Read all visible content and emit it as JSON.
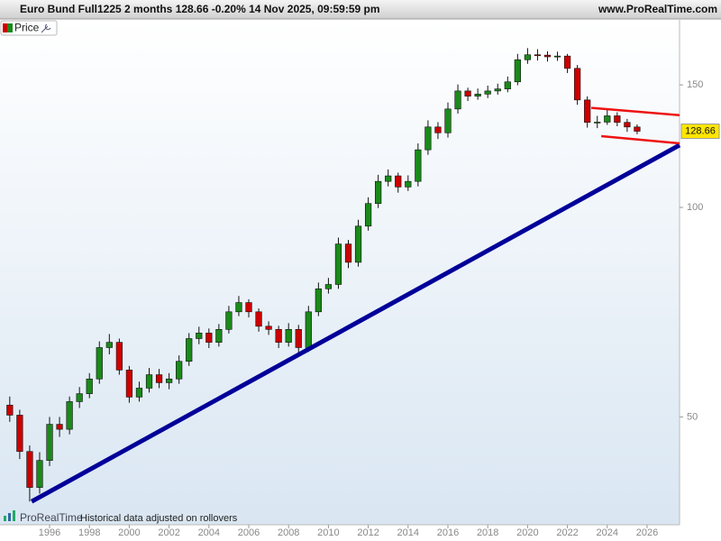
{
  "chart_data": {
    "type": "candlestick",
    "title": "Euro Bund Full1225 2 months 128.66 -0.20% 14 Nov 2025, 09:59:59 pm",
    "website": "www.ProRealTime.com",
    "legend": "Price",
    "brand": "ProRealTime",
    "footnote": "Historical data adjusted on rollovers",
    "log_scale": true,
    "grid": false,
    "up_color": "#1a8a1a",
    "down_color": "#cc0000",
    "x": [
      1994.0,
      1994.5,
      1995.0,
      1995.5,
      1996.0,
      1996.5,
      1997.0,
      1997.5,
      1998.0,
      1998.5,
      1999.0,
      1999.5,
      2000.0,
      2000.5,
      2001.0,
      2001.5,
      2002.0,
      2002.5,
      2003.0,
      2003.5,
      2004.0,
      2004.5,
      2005.0,
      2005.5,
      2006.0,
      2006.5,
      2007.0,
      2007.5,
      2008.0,
      2008.5,
      2009.0,
      2009.5,
      2010.0,
      2010.5,
      2011.0,
      2011.5,
      2012.0,
      2012.5,
      2013.0,
      2013.5,
      2014.0,
      2014.5,
      2015.0,
      2015.5,
      2016.0,
      2016.5,
      2017.0,
      2017.5,
      2018.0,
      2018.5,
      2019.0,
      2019.5,
      2020.0,
      2020.5,
      2021.0,
      2021.5,
      2022.0,
      2022.5,
      2023.0,
      2023.5,
      2024.0,
      2024.5,
      2025.0,
      2025.5
    ],
    "open": [
      52,
      50.3,
      44.6,
      39.6,
      43.3,
      48.8,
      48,
      52.6,
      54,
      56.7,
      62.9,
      64,
      58.4,
      53.4,
      55,
      57.5,
      56,
      56.7,
      60.1,
      64.8,
      66,
      64,
      66.8,
      70.8,
      73,
      70.8,
      67.5,
      66.8,
      64,
      66.8,
      62.9,
      70.8,
      76.4,
      77.5,
      88.6,
      83.4,
      94,
      101.3,
      109,
      111,
      107,
      109,
      121,
      130.5,
      128,
      138.5,
      147,
      144.5,
      145.5,
      147,
      148,
      151.5,
      163,
      165.7,
      165.5,
      164.6,
      165,
      158.4,
      142.7,
      132.5,
      132.6,
      135.4,
      132.5,
      130.5
    ],
    "high": [
      53.5,
      51.2,
      45.5,
      44.5,
      50,
      50,
      53.5,
      55.2,
      57.8,
      64.2,
      65.8,
      64.8,
      59.2,
      56.2,
      58.8,
      58.6,
      57.8,
      61.3,
      66,
      67.4,
      67,
      68,
      72.2,
      74.6,
      73.8,
      71.6,
      68.6,
      67.6,
      68.2,
      67.8,
      72.2,
      78,
      79.2,
      90.5,
      89.8,
      96,
      103.4,
      111.4,
      113.4,
      112.2,
      111.2,
      123.6,
      133.4,
      132.6,
      141.5,
      150.2,
      148.6,
      148.2,
      149.6,
      150.6,
      154.2,
      166.2,
      169.4,
      168.8,
      167.6,
      167.4,
      166.2,
      160.2,
      144.4,
      135.4,
      138.6,
      137,
      134,
      131.6
    ],
    "low": [
      49.2,
      43.5,
      37.8,
      38.8,
      42.5,
      46.8,
      47.2,
      51.5,
      53.2,
      55.8,
      61.5,
      57.5,
      52.4,
      52.6,
      54.2,
      55,
      54.8,
      55.8,
      59.2,
      63.6,
      62.8,
      63.1,
      65.9,
      69.8,
      69.5,
      66.3,
      65.6,
      62.8,
      63.1,
      61.7,
      62,
      69.8,
      75.2,
      76.4,
      81.8,
      82.2,
      92.6,
      99.8,
      107.2,
      105,
      105.6,
      107.2,
      119,
      125.4,
      126,
      136.4,
      142.2,
      142.8,
      143.6,
      145.2,
      146.4,
      149.8,
      160.8,
      162.6,
      162,
      162.4,
      156,
      140.4,
      130.2,
      130,
      131.4,
      130.8,
      128.4,
      127.4
    ],
    "close": [
      50.3,
      44.6,
      39.6,
      43.3,
      48.8,
      48,
      52.6,
      54,
      56.7,
      62.9,
      64,
      58.4,
      53.4,
      55,
      57.5,
      56,
      56.7,
      60.1,
      64.8,
      66,
      64,
      66.8,
      70.8,
      73,
      70.8,
      67.5,
      66.8,
      64,
      66.8,
      62.9,
      70.8,
      76.4,
      77.5,
      88.6,
      83.4,
      94,
      101.3,
      109,
      111,
      107,
      109,
      121,
      130.5,
      128,
      138.5,
      147,
      144.5,
      145.5,
      147,
      148,
      151.5,
      163,
      165.7,
      165.5,
      164.6,
      165,
      158.4,
      142.7,
      132.5,
      132.6,
      135.4,
      132.5,
      130.5,
      128.66
    ],
    "last_price": 128.66,
    "lines": [
      {
        "color": "#000099",
        "x": [
          1995.1,
          2027.63
        ],
        "y": [
          37.8,
          122.9
        ]
      },
      {
        "color": "#ee1111",
        "x": [
          2023.2,
          2027.63
        ],
        "y": [
          139,
          135.7
        ]
      },
      {
        "color": "#ee1111",
        "x": [
          2023.7,
          2027.63
        ],
        "y": [
          126.6,
          123.6
        ]
      }
    ],
    "xlim": [
      1993.51,
      2027.63
    ],
    "xticks": [
      1996,
      1998,
      2000,
      2002,
      2004,
      2006,
      2008,
      2010,
      2012,
      2014,
      2016,
      2018,
      2020,
      2022,
      2024,
      2026
    ],
    "ylim": [
      35,
      186
    ],
    "yticks": [
      50,
      100,
      150
    ]
  }
}
